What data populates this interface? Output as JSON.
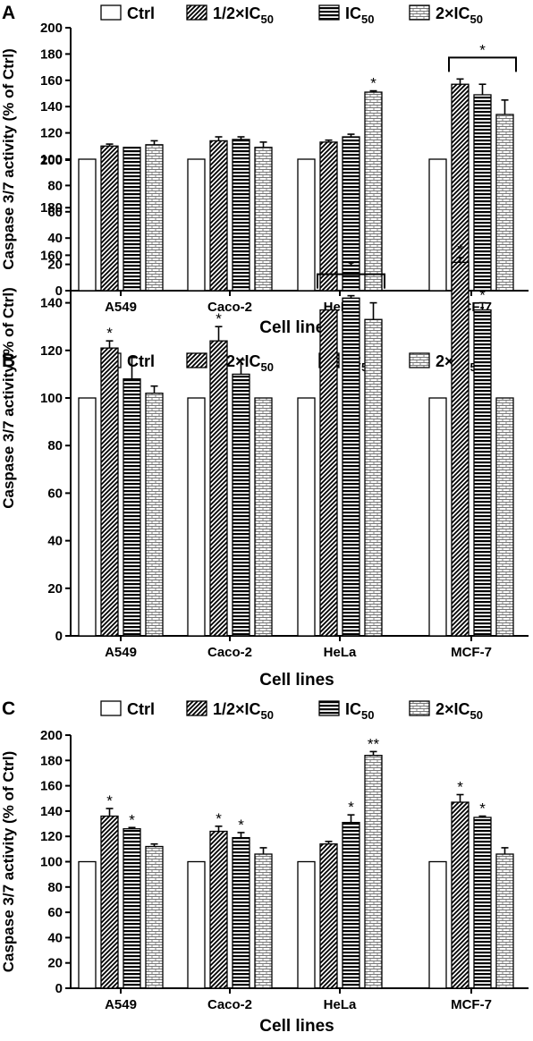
{
  "chart_data": [
    {
      "type": "bar",
      "panel_label": "A",
      "categories": [
        "A549",
        "Caco-2",
        "HeLa",
        "MCF-7"
      ],
      "xlabel": "Cell lines",
      "ylabel": "Caspase 3/7 activity (% of Ctrl)",
      "ylim": [
        0,
        200
      ],
      "yticks": [
        0,
        20,
        40,
        60,
        80,
        100,
        120,
        140,
        160,
        180,
        200
      ],
      "legend_position": "top",
      "series": [
        {
          "name": "Ctrl",
          "values": [
            100,
            100,
            100,
            100
          ],
          "errors": [
            0,
            0,
            0,
            0
          ],
          "stars": [
            "",
            "",
            "",
            ""
          ]
        },
        {
          "name": "1/2×IC50",
          "values": [
            110,
            114,
            113,
            157
          ],
          "errors": [
            1.5,
            3,
            1.5,
            4
          ],
          "stars": [
            "",
            "",
            "",
            ""
          ]
        },
        {
          "name": "IC50",
          "values": [
            109,
            115,
            117,
            149
          ],
          "errors": [
            0,
            2,
            2,
            8
          ],
          "stars": [
            "",
            "",
            "",
            ""
          ]
        },
        {
          "name": "2×IC50",
          "values": [
            111,
            109,
            151,
            134
          ],
          "errors": [
            3,
            4,
            1,
            11
          ],
          "stars": [
            "",
            "",
            "*",
            ""
          ]
        }
      ],
      "brackets": [
        {
          "category": 3,
          "label": "*"
        }
      ]
    },
    {
      "type": "bar",
      "panel_label": "B",
      "categories": [
        "A549",
        "Caco-2",
        "HeLa",
        "MCF-7"
      ],
      "xlabel": "Cell lines",
      "ylabel": "Caspase 3/7 activity (% of Ctrl)",
      "ylim": [
        0,
        200
      ],
      "yticks": [
        0,
        20,
        40,
        60,
        80,
        100,
        120,
        140,
        160,
        180,
        200
      ],
      "legend_position": "top",
      "series": [
        {
          "name": "Ctrl",
          "values": [
            100,
            100,
            100,
            100
          ],
          "errors": [
            0,
            0,
            0,
            0
          ],
          "stars": [
            "",
            "",
            "",
            ""
          ]
        },
        {
          "name": "1/2×IC50",
          "values": [
            121,
            124,
            137,
            157
          ],
          "errors": [
            3,
            6,
            0,
            2
          ],
          "stars": [
            "*",
            "*",
            "",
            "*"
          ]
        },
        {
          "name": "IC50",
          "values": [
            108,
            110,
            142,
            137
          ],
          "errors": [
            9,
            6,
            1,
            3
          ],
          "stars": [
            "",
            "",
            "",
            "*"
          ]
        },
        {
          "name": "2×IC50",
          "values": [
            102,
            100,
            133,
            100
          ],
          "errors": [
            3,
            0,
            7,
            0
          ],
          "stars": [
            "",
            "",
            "",
            ""
          ]
        }
      ],
      "brackets": [
        {
          "category": 2,
          "label": "*"
        }
      ]
    },
    {
      "type": "bar",
      "panel_label": "C",
      "categories": [
        "A549",
        "Caco-2",
        "HeLa",
        "MCF-7"
      ],
      "xlabel": "Cell lines",
      "ylabel": "Caspase 3/7 activity (% of Ctrl)",
      "ylim": [
        0,
        200
      ],
      "yticks": [
        0,
        20,
        40,
        60,
        80,
        100,
        120,
        140,
        160,
        180,
        200
      ],
      "legend_position": "top",
      "series": [
        {
          "name": "Ctrl",
          "values": [
            100,
            100,
            100,
            100
          ],
          "errors": [
            0,
            0,
            0,
            0
          ],
          "stars": [
            "",
            "",
            "",
            ""
          ]
        },
        {
          "name": "1/2×IC50",
          "values": [
            136,
            124,
            114,
            147
          ],
          "errors": [
            6,
            4,
            2,
            6
          ],
          "stars": [
            "*",
            "*",
            "",
            "*"
          ]
        },
        {
          "name": "IC50",
          "values": [
            126,
            119,
            131,
            135
          ],
          "errors": [
            1,
            4,
            6,
            1
          ],
          "stars": [
            "*",
            "*",
            "*",
            "*"
          ]
        },
        {
          "name": "2×IC50",
          "values": [
            112,
            106,
            184,
            106
          ],
          "errors": [
            2,
            5,
            3,
            5
          ],
          "stars": [
            "",
            "",
            "**",
            ""
          ]
        }
      ],
      "brackets": []
    }
  ]
}
